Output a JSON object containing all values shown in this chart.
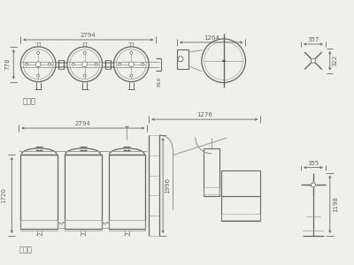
{
  "bg_color": "#f0f0eb",
  "lc": "#999990",
  "dc": "#666660",
  "dimc": "#666660",
  "top_view_label": "俧视图",
  "front_view_label": "正视图",
  "dims": {
    "top_2794": "2794",
    "top_778": "778",
    "side_1264": "1264",
    "side_357": "357",
    "side_322": "322",
    "side_816": "816",
    "front_2794": "2794",
    "front_1276": "1276",
    "front_1720": "1720",
    "front_1996": "1996",
    "front_side_355": "355",
    "front_side_1198": "1198"
  }
}
